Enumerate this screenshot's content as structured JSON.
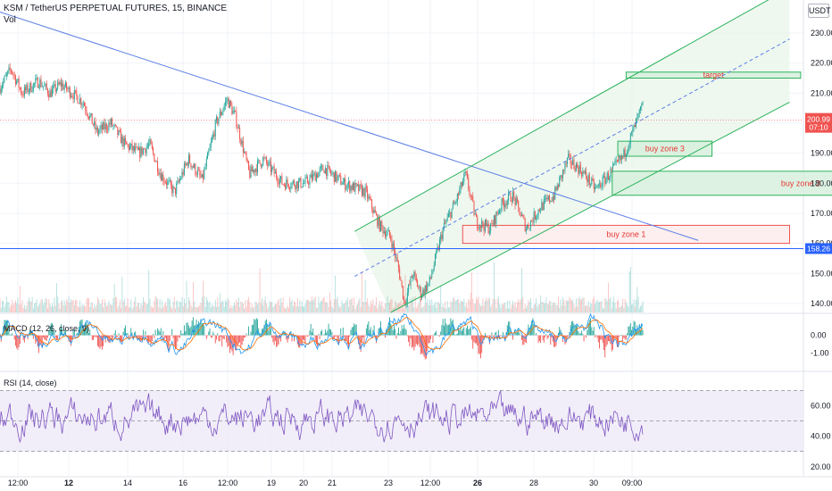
{
  "header": {
    "title": "KSM / TetherUS PERPETUAL FUTURES, 15, BINANCE",
    "volume_label": "Vol",
    "unit_badge": "USDT"
  },
  "indicators": {
    "macd_label": "MACD (12, 26, close, 9)",
    "rsi_label": "RSI (14, close)"
  },
  "colors": {
    "up": "#26a69a",
    "down": "#ef5350",
    "trendline": "#5b7ee5",
    "channel": "#2db35d",
    "channel_fill": "#e8f6e9",
    "price_badge": "#ef5350",
    "level_badge": "#2962ff",
    "rsi_line": "#7e57c2",
    "rsi_band": "#ede7f6"
  },
  "chart_data": {
    "type": "candlestick",
    "symbol": "KSM / TetherUS PERPETUAL FUTURES",
    "interval": "15",
    "exchange": "BINANCE",
    "price_axis": {
      "ticks": [
        "230.00",
        "220.00",
        "210.00",
        "200.00",
        "190.00",
        "180.00",
        "170.00",
        "160.00",
        "150.00",
        "140.00"
      ],
      "range": [
        137,
        241
      ]
    },
    "time_axis": {
      "ticks": [
        "12:00",
        "12",
        "14",
        "16",
        "12:00",
        "19",
        "20",
        "21",
        "23",
        "12:00",
        "26",
        "28",
        "30",
        "09:00"
      ]
    },
    "current_price": {
      "value": "200.99",
      "countdown": "07:10"
    },
    "horizontal_level": {
      "value": "158.26"
    },
    "price_path_key_points": [
      {
        "x": 0,
        "y": 212
      },
      {
        "x": 4,
        "y": 218
      },
      {
        "x": 8,
        "y": 210
      },
      {
        "x": 14,
        "y": 214
      },
      {
        "x": 18,
        "y": 210
      },
      {
        "x": 22,
        "y": 213
      },
      {
        "x": 30,
        "y": 207
      },
      {
        "x": 35,
        "y": 197
      },
      {
        "x": 40,
        "y": 200
      },
      {
        "x": 45,
        "y": 193
      },
      {
        "x": 50,
        "y": 190
      },
      {
        "x": 54,
        "y": 193
      },
      {
        "x": 58,
        "y": 183
      },
      {
        "x": 63,
        "y": 177
      },
      {
        "x": 68,
        "y": 188
      },
      {
        "x": 73,
        "y": 181
      },
      {
        "x": 78,
        "y": 200
      },
      {
        "x": 82,
        "y": 208
      },
      {
        "x": 85,
        "y": 202
      },
      {
        "x": 90,
        "y": 183
      },
      {
        "x": 95,
        "y": 188
      },
      {
        "x": 102,
        "y": 180
      },
      {
        "x": 110,
        "y": 180
      },
      {
        "x": 117,
        "y": 185
      },
      {
        "x": 124,
        "y": 180
      },
      {
        "x": 132,
        "y": 177
      },
      {
        "x": 137,
        "y": 166
      },
      {
        "x": 141,
        "y": 162
      },
      {
        "x": 144,
        "y": 151
      },
      {
        "x": 146,
        "y": 140
      },
      {
        "x": 149,
        "y": 150
      },
      {
        "x": 152,
        "y": 143
      },
      {
        "x": 155,
        "y": 147
      },
      {
        "x": 160,
        "y": 165
      },
      {
        "x": 165,
        "y": 175
      },
      {
        "x": 168,
        "y": 183
      },
      {
        "x": 172,
        "y": 167
      },
      {
        "x": 177,
        "y": 165
      },
      {
        "x": 181,
        "y": 173
      },
      {
        "x": 185,
        "y": 176
      },
      {
        "x": 190,
        "y": 165
      },
      {
        "x": 195,
        "y": 172
      },
      {
        "x": 200,
        "y": 176
      },
      {
        "x": 205,
        "y": 188
      },
      {
        "x": 210,
        "y": 184
      },
      {
        "x": 215,
        "y": 178
      },
      {
        "x": 220,
        "y": 183
      },
      {
        "x": 225,
        "y": 189
      },
      {
        "x": 230,
        "y": 201
      },
      {
        "x": 232,
        "y": 206
      }
    ],
    "trendlines": [
      {
        "name": "descending trendline",
        "from": {
          "x": 0,
          "y": 237
        },
        "to": {
          "x": 252,
          "y": 161
        }
      },
      {
        "name": "channel upper",
        "from": {
          "x": 128,
          "y": 164
        },
        "to": {
          "x": 285,
          "y": 245
        }
      },
      {
        "name": "channel lower",
        "from": {
          "x": 141,
          "y": 137
        },
        "to": {
          "x": 285,
          "y": 207
        }
      },
      {
        "name": "channel mid (dashed)",
        "from": {
          "x": 128,
          "y": 149
        },
        "to": {
          "x": 285,
          "y": 228
        }
      }
    ],
    "zones": [
      {
        "label": "target",
        "x": [
          226,
          289
        ],
        "y": [
          217,
          215
        ],
        "color": "#2db35d"
      },
      {
        "label": "buy zone 3",
        "x": [
          223,
          257
        ],
        "y": [
          194,
          189
        ],
        "color": "#2db35d"
      },
      {
        "label": "buy zone 2",
        "x": [
          221,
          357
        ],
        "y": [
          184,
          176
        ],
        "color": "#2db35d"
      },
      {
        "label": "buy zone 1",
        "x": [
          167,
          285
        ],
        "y": [
          166,
          160
        ],
        "color": "#ef5350"
      }
    ],
    "macd": {
      "ticks": [
        "0.00",
        "-1.00"
      ],
      "range": [
        1.2,
        -2.0
      ]
    },
    "rsi": {
      "ticks": [
        "60.00",
        "40.00",
        "20.00"
      ],
      "range": [
        14,
        82
      ],
      "upper_band": 70,
      "lower_band": 30
    },
    "grid": true
  }
}
